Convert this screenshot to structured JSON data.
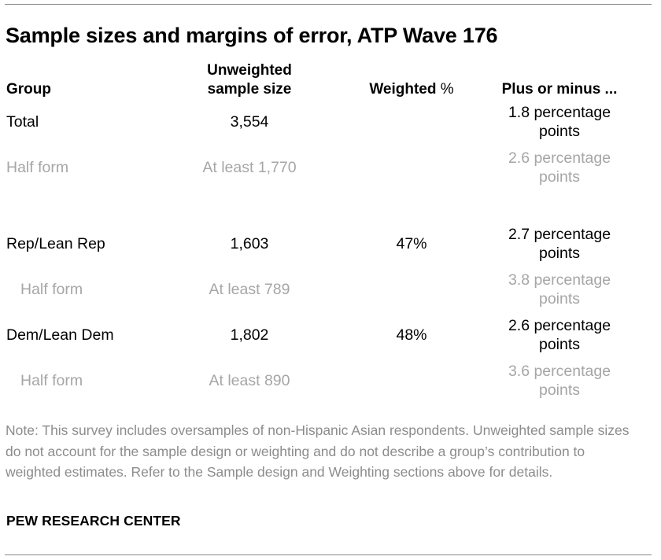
{
  "title": "Sample sizes and margins of error, ATP Wave 176",
  "headers": {
    "group": "Group",
    "unweighted_line1": "Unweighted",
    "unweighted_line2": "sample size",
    "weighted_main": "Weighted",
    "weighted_suffix": " %",
    "margin": "Plus or minus ..."
  },
  "rows": [
    {
      "group": "Total",
      "n": "3,554",
      "weighted": "",
      "margin_line1": "1.8 percentage",
      "margin_line2": "points"
    },
    {
      "group": "Half form",
      "n": "At least 1,770",
      "weighted": "",
      "margin_line1": "2.6 percentage",
      "margin_line2": "points"
    },
    {
      "group": "Rep/Lean Rep",
      "n": "1,603",
      "weighted": "47%",
      "margin_line1": "2.7 percentage",
      "margin_line2": "points"
    },
    {
      "group": "Half form",
      "n": "At least 789",
      "weighted": "",
      "margin_line1": "3.8 percentage",
      "margin_line2": "points"
    },
    {
      "group": "Dem/Lean Dem",
      "n": "1,802",
      "weighted": "48%",
      "margin_line1": "2.6 percentage",
      "margin_line2": "points"
    },
    {
      "group": "Half form",
      "n": "At least 890",
      "weighted": "",
      "margin_line1": "3.6 percentage",
      "margin_line2": "points"
    }
  ],
  "note": "Note: This survey includes oversamples of non-Hispanic Asian respondents. Unweighted sample sizes do not account for the sample design or weighting and do not describe a group’s contribution to weighted estimates. Refer to the Sample design and Weighting sections above for details.",
  "source": "PEW RESEARCH CENTER",
  "colors": {
    "primary_text": "#000000",
    "muted_text": "#a6a6a6",
    "note_text": "#8c8c8c",
    "rule": "#8a8a8a"
  }
}
